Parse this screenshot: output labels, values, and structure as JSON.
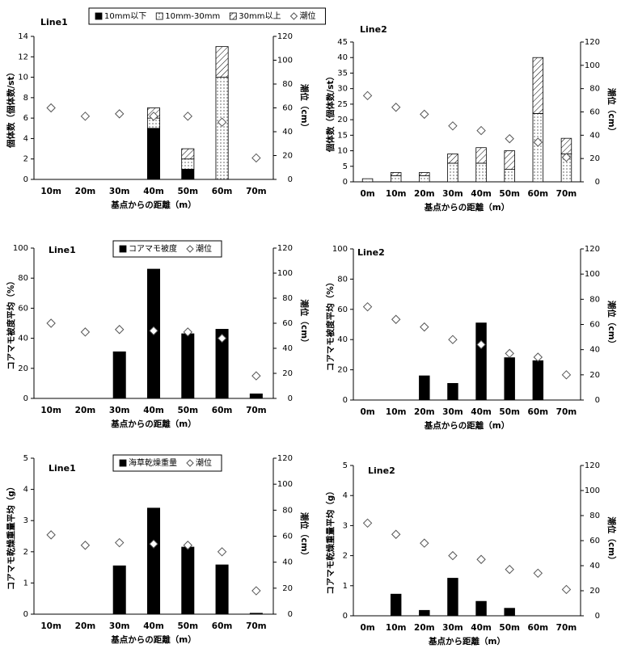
{
  "chart_data": [
    {
      "type": "bar",
      "title": "Line1",
      "stacked": true,
      "legend": "top",
      "xlabel": "基点からの距離（m）",
      "ylabel": "個体数（個体数/st）",
      "y2label": "潮位（cm）",
      "categories": [
        "10m",
        "20m",
        "30m",
        "40m",
        "50m",
        "60m",
        "70m"
      ],
      "series": [
        {
          "name": "10mm以下",
          "color": "#000000",
          "pattern": "solid",
          "values": [
            0,
            0,
            0,
            5,
            1,
            0,
            0
          ]
        },
        {
          "name": "10mm-30mm",
          "color": "#000000",
          "pattern": "dots",
          "values": [
            0,
            0,
            0,
            1,
            1,
            10,
            0
          ]
        },
        {
          "name": "30mm以上",
          "color": "#000000",
          "pattern": "hatch",
          "values": [
            0,
            0,
            0,
            1,
            1,
            3,
            0
          ]
        },
        {
          "name": "潮位",
          "color": "#ffffff",
          "marker": "diamond",
          "axis": "y2",
          "values": [
            60,
            53,
            55,
            53,
            53,
            48,
            18
          ]
        }
      ],
      "ylim": [
        0,
        14
      ],
      "yticks": [
        0,
        2,
        4,
        6,
        8,
        10,
        12,
        14
      ],
      "y2lim": [
        0,
        120
      ],
      "y2ticks": [
        0,
        20,
        40,
        60,
        80,
        100,
        120
      ]
    },
    {
      "type": "bar",
      "title": "Line2",
      "stacked": true,
      "xlabel": "基点からの距離（m）",
      "ylabel": "個体数（個体数/st）",
      "y2label": "潮位（cm）",
      "categories": [
        "0m",
        "10m",
        "20m",
        "30m",
        "40m",
        "50m",
        "60m",
        "70m"
      ],
      "series": [
        {
          "color": "#000000",
          "pattern": "solid",
          "values": [
            0,
            0,
            0,
            0,
            0,
            0,
            0,
            0
          ]
        },
        {
          "color": "#000000",
          "pattern": "dots",
          "values": [
            1,
            2,
            2,
            6,
            6,
            4,
            22,
            9
          ]
        },
        {
          "color": "#000000",
          "pattern": "hatch",
          "values": [
            0,
            1,
            1,
            3,
            5,
            6,
            18,
            5
          ]
        },
        {
          "color": "#ffffff",
          "marker": "diamond",
          "axis": "y2",
          "values": [
            74,
            64,
            58,
            48,
            44,
            37,
            34,
            21
          ]
        }
      ],
      "ylim": [
        0,
        45
      ],
      "yticks": [
        0,
        5,
        10,
        15,
        20,
        25,
        30,
        35,
        40,
        45
      ],
      "y2lim": [
        0,
        120
      ],
      "y2ticks": [
        0,
        20,
        40,
        60,
        80,
        100,
        120
      ]
    },
    {
      "type": "bar",
      "title": "Line1",
      "legend": "top",
      "xlabel": "基点からの距離（m）",
      "ylabel": "コアマモ被度平均（%）",
      "y2label": "潮位（cm）",
      "categories": [
        "10m",
        "20m",
        "30m",
        "40m",
        "50m",
        "60m",
        "70m"
      ],
      "series": [
        {
          "name": "コアマモ被度",
          "color": "#000000",
          "pattern": "solid",
          "values": [
            0,
            0,
            31,
            86,
            43,
            46,
            3
          ]
        },
        {
          "name": "潮位",
          "color": "#ffffff",
          "marker": "diamond",
          "axis": "y2",
          "values": [
            60,
            53,
            55,
            54,
            53,
            48,
            18
          ]
        }
      ],
      "ylim": [
        0,
        100
      ],
      "yticks": [
        0,
        20,
        40,
        60,
        80,
        100
      ],
      "y2lim": [
        0,
        120
      ],
      "y2ticks": [
        0,
        20,
        40,
        60,
        80,
        100,
        120
      ]
    },
    {
      "type": "bar",
      "title": "Line2",
      "xlabel": "基点からの距離（m）",
      "ylabel": "コアマモ被度平均（%）",
      "y2label": "潮位（cm）",
      "categories": [
        "0m",
        "10m",
        "20m",
        "30m",
        "40m",
        "50m",
        "60m",
        "70m"
      ],
      "series": [
        {
          "color": "#000000",
          "pattern": "solid",
          "values": [
            0,
            0,
            16,
            11,
            51,
            28,
            26,
            0
          ]
        },
        {
          "color": "#ffffff",
          "marker": "diamond",
          "axis": "y2",
          "values": [
            74,
            64,
            58,
            48,
            44,
            37,
            34,
            20
          ]
        }
      ],
      "ylim": [
        0,
        100
      ],
      "yticks": [
        0,
        20,
        40,
        60,
        80,
        100
      ],
      "y2lim": [
        0,
        120
      ],
      "y2ticks": [
        0,
        20,
        40,
        60,
        80,
        100,
        120
      ]
    },
    {
      "type": "bar",
      "title": "Line1",
      "legend": "top",
      "xlabel": "基点からの距離（m）",
      "ylabel": "コアマモ乾燥重量平均（g）",
      "y2label": "潮位（cm）",
      "categories": [
        "10m",
        "20m",
        "30m",
        "40m",
        "50m",
        "60m",
        "70m"
      ],
      "series": [
        {
          "name": "海草乾燥重量",
          "color": "#000000",
          "pattern": "solid",
          "values": [
            0,
            0,
            1.55,
            3.4,
            2.15,
            1.58,
            0.03
          ]
        },
        {
          "name": "潮位",
          "color": "#ffffff",
          "marker": "diamond",
          "axis": "y2",
          "values": [
            61,
            53,
            55,
            54,
            53,
            48,
            18
          ]
        }
      ],
      "ylim": [
        0,
        5
      ],
      "yticks": [
        0,
        1,
        2,
        3,
        4,
        5
      ],
      "y2lim": [
        0,
        120
      ],
      "y2ticks": [
        0,
        20,
        40,
        60,
        80,
        100,
        120
      ]
    },
    {
      "type": "bar",
      "title": "Line2",
      "xlabel": "基点から距離（m）",
      "ylabel": "コアマモ乾燥重量平均（g）",
      "y2label": "潮位（cm）",
      "categories": [
        "0m",
        "10m",
        "20m",
        "30m",
        "40m",
        "50m",
        "60m",
        "70m"
      ],
      "series": [
        {
          "color": "#000000",
          "pattern": "solid",
          "values": [
            0,
            0.72,
            0.18,
            1.25,
            0.48,
            0.25,
            0,
            0
          ]
        },
        {
          "color": "#ffffff",
          "marker": "diamond",
          "axis": "y2",
          "values": [
            74,
            65,
            58,
            48,
            45,
            37,
            34,
            21
          ]
        }
      ],
      "ylim": [
        0,
        5
      ],
      "yticks": [
        0,
        1,
        2,
        3,
        4,
        5
      ],
      "y2lim": [
        0,
        120
      ],
      "y2ticks": [
        0,
        20,
        40,
        60,
        80,
        100,
        120
      ]
    }
  ]
}
